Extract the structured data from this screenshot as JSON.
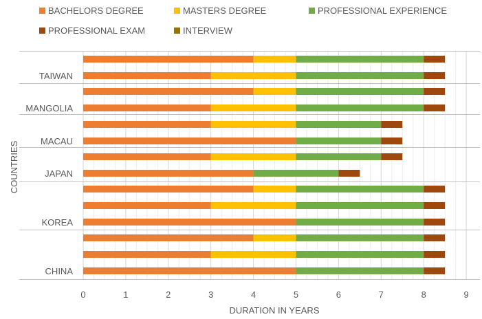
{
  "chart_data": {
    "type": "bar",
    "orientation": "horizontal",
    "stacked": true,
    "xlabel": "DURATION IN YEARS",
    "ylabel": "COUNTRIES",
    "xlim": [
      0,
      9
    ],
    "xticks": [
      "0",
      "1",
      "2",
      "3",
      "4",
      "5",
      "6",
      "7",
      "8",
      "9"
    ],
    "grid": true,
    "legend_position": "top",
    "series": [
      {
        "name": "BACHELORS DEGREE",
        "color": "#ED7D31"
      },
      {
        "name": "MASTERS DEGREE",
        "color": "#FFC000"
      },
      {
        "name": "PROFESSIONAL EXPERIENCE",
        "color": "#70AD47"
      },
      {
        "name": "PROFESSIONAL EXAM",
        "color": "#9E480E"
      },
      {
        "name": "INTERVIEW",
        "color": "#997300"
      }
    ],
    "groups": [
      {
        "label": "TAIWAN",
        "bars": [
          [
            4,
            1,
            3,
            0.5,
            0
          ],
          [
            3,
            2,
            3,
            0.5,
            0
          ]
        ]
      },
      {
        "label": "MANGOLIA",
        "bars": [
          [
            4,
            1,
            3,
            0.5,
            0
          ],
          [
            3,
            2,
            3,
            0.5,
            0
          ]
        ]
      },
      {
        "label": "MACAU",
        "bars": [
          [
            3,
            2,
            2,
            0.5,
            0
          ],
          [
            5,
            0,
            2,
            0.5,
            0
          ]
        ]
      },
      {
        "label": "JAPAN",
        "bars": [
          [
            3,
            2,
            2,
            0.5,
            0
          ],
          [
            4,
            0,
            2,
            0.5,
            0
          ]
        ]
      },
      {
        "label": "KOREA",
        "bars": [
          [
            4,
            1,
            3,
            0.5,
            0
          ],
          [
            3,
            2,
            3,
            0.5,
            0
          ],
          [
            5,
            0,
            3,
            0.5,
            0
          ]
        ]
      },
      {
        "label": "CHINA",
        "bars": [
          [
            4,
            1,
            3,
            0.5,
            0
          ],
          [
            3,
            2,
            3,
            0.5,
            0
          ],
          [
            5,
            0,
            3,
            0.5,
            0
          ]
        ]
      }
    ]
  }
}
